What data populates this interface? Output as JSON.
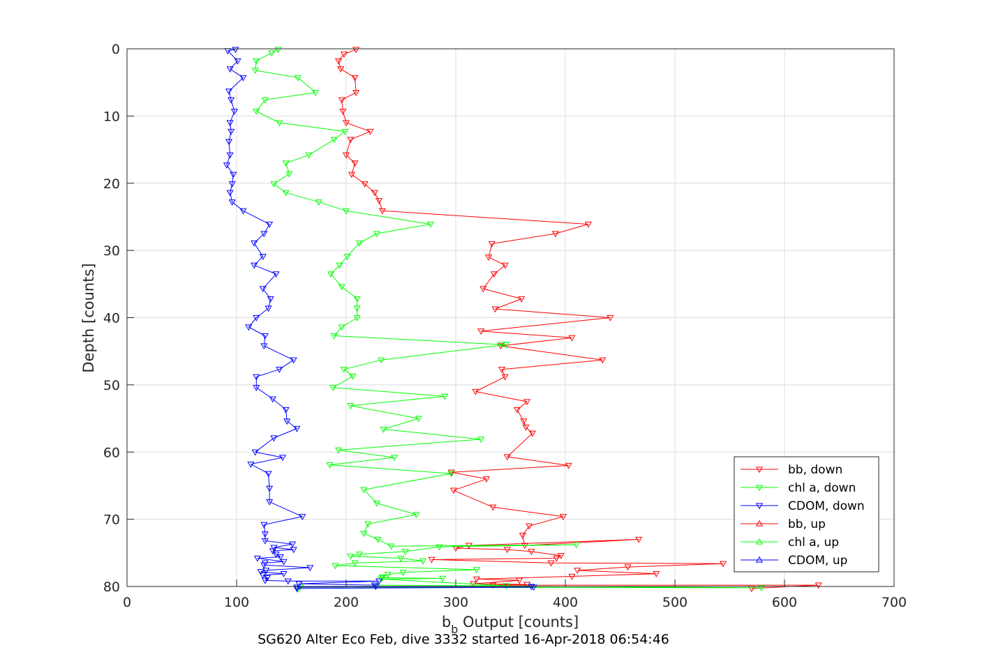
{
  "chart_data": {
    "type": "line",
    "subtitle": "SG620 Alter Eco Feb, dive 3332 started 16-Apr-2018 06:54:46",
    "xlabel_main": "b",
    "xlabel_sub": "b",
    "xlabel_rest": " Output [counts]",
    "ylabel": "Depth [counts]",
    "xlim": [
      0,
      700
    ],
    "ylim": [
      0,
      80
    ],
    "y_reversed": true,
    "grid": true,
    "legend_position": "bottom-right",
    "xticks": [
      0,
      100,
      200,
      300,
      400,
      500,
      600,
      700
    ],
    "yticks": [
      0,
      10,
      20,
      30,
      40,
      50,
      60,
      70,
      80
    ],
    "series": [
      {
        "name": "bb, down",
        "color": "#ff0000",
        "marker": "triangle-down",
        "x": [
          209,
          198,
          193,
          195,
          208,
          209,
          196,
          197,
          200,
          222,
          204,
          200,
          208,
          205,
          217,
          226,
          230,
          233,
          421,
          391,
          333,
          330,
          345,
          335,
          325,
          360,
          336,
          441,
          323,
          406,
          341,
          434,
          342,
          345,
          318,
          365,
          356,
          362,
          364,
          370,
          347,
          403,
          296,
          328,
          298,
          334,
          398,
          367,
          361,
          363,
          467,
          312,
          300,
          347,
          369,
          396,
          392,
          278,
          387,
          544,
          457,
          411,
          483,
          406,
          319,
          358,
          316,
          365,
          334,
          631,
          570
        ],
        "y": [
          0.1,
          0.8,
          1.8,
          3.0,
          4.3,
          6.5,
          7.6,
          9.3,
          11.0,
          12.3,
          13.5,
          15.8,
          17.0,
          18.7,
          20.1,
          21.4,
          22.6,
          24.1,
          26.1,
          27.5,
          29.0,
          31.0,
          32.2,
          33.5,
          35.7,
          37.2,
          38.7,
          40.0,
          42.0,
          43.0,
          44.2,
          46.3,
          47.7,
          48.8,
          51.0,
          52.5,
          53.7,
          55.4,
          56.3,
          57.2,
          60.7,
          62.0,
          63.0,
          64.0,
          65.7,
          68.2,
          69.6,
          71.0,
          72.4,
          73.9,
          73.0,
          73.9,
          74.3,
          74.5,
          74.8,
          75.4,
          75.8,
          76.0,
          76.5,
          76.6,
          77.1,
          77.6,
          78.1,
          78.5,
          78.9,
          79.1,
          79.6,
          79.7,
          79.8,
          79.8,
          80.3
        ]
      },
      {
        "name": "chl a, down",
        "color": "#00ff00",
        "marker": "triangle-down",
        "x": [
          138,
          132,
          118,
          117,
          156,
          172,
          126,
          118,
          139,
          199,
          189,
          166,
          145,
          148,
          134,
          145,
          175,
          200,
          277,
          228,
          212,
          201,
          194,
          186,
          196,
          210,
          210,
          210,
          196,
          189,
          342,
          346,
          232,
          198,
          206,
          188,
          290,
          204,
          266,
          234,
          323,
          193,
          244,
          185,
          296,
          216,
          228,
          264,
          220,
          216,
          229,
          241,
          410,
          285,
          254,
          212,
          204,
          250,
          270,
          208,
          190,
          319,
          252,
          238,
          233,
          233,
          288,
          232,
          346,
          226,
          579,
          158,
          156
        ],
        "y": [
          0.1,
          0.6,
          1.8,
          3.2,
          4.3,
          6.5,
          7.6,
          9.3,
          11.0,
          12.3,
          13.5,
          15.8,
          17.0,
          18.6,
          20.1,
          21.4,
          22.8,
          24.1,
          26.1,
          27.5,
          28.9,
          30.9,
          32.2,
          33.5,
          35.4,
          37.2,
          38.6,
          40.0,
          41.4,
          42.7,
          44.0,
          44.0,
          46.3,
          47.7,
          48.7,
          50.4,
          51.7,
          53.1,
          55.0,
          56.6,
          58.1,
          59.7,
          60.8,
          61.9,
          63.2,
          65.6,
          67.6,
          69.3,
          70.7,
          72.1,
          73.0,
          74.0,
          73.8,
          74.1,
          74.8,
          75.2,
          75.5,
          75.8,
          76.2,
          76.5,
          76.9,
          77.5,
          77.9,
          78.2,
          78.6,
          78.7,
          78.8,
          78.9,
          79.9,
          79.8,
          80.2,
          80.1,
          80.4
        ]
      },
      {
        "name": "CDOM, down",
        "color": "#0000ff",
        "marker": "triangle-down",
        "x": [
          99,
          92,
          101,
          94,
          106,
          93,
          95,
          98,
          94,
          95,
          93,
          94,
          91,
          97,
          96,
          94,
          96,
          106,
          130,
          125,
          116,
          124,
          116,
          136,
          124,
          131,
          129,
          118,
          111,
          126,
          125,
          152,
          139,
          118,
          118,
          133,
          145,
          146,
          155,
          134,
          117,
          142,
          113,
          129,
          130,
          130,
          160,
          125,
          126,
          126,
          151,
          134,
          152,
          133,
          136,
          140,
          119,
          143,
          126,
          125,
          167,
          127,
          122,
          143,
          124,
          128,
          126,
          147,
          230,
          157,
          226,
          227,
          155,
          369,
          371,
          155
        ],
        "y": [
          0.1,
          0.3,
          1.8,
          3.0,
          4.3,
          6.3,
          7.6,
          9.3,
          11.0,
          12.3,
          13.8,
          15.8,
          17.3,
          18.7,
          20.1,
          21.4,
          22.8,
          24.1,
          26.1,
          27.5,
          28.9,
          30.9,
          32.2,
          33.5,
          35.7,
          37.2,
          38.6,
          40.0,
          41.4,
          42.7,
          44.2,
          46.3,
          47.7,
          48.8,
          50.4,
          52.1,
          53.7,
          55.4,
          56.5,
          57.9,
          60.0,
          60.8,
          61.8,
          63.2,
          65.4,
          67.4,
          69.6,
          70.8,
          72.2,
          73.2,
          73.7,
          74.2,
          74.5,
          74.7,
          75.2,
          75.6,
          75.8,
          76.3,
          76.5,
          76.8,
          77.2,
          77.6,
          77.8,
          78.1,
          78.3,
          78.7,
          79.1,
          79.2,
          79.2,
          79.6,
          79.8,
          80.0,
          80.1,
          80.0,
          80.1,
          80.3
        ]
      },
      {
        "name": "bb, up",
        "color": "#ff0000",
        "marker": "triangle-up",
        "x": [],
        "y": []
      },
      {
        "name": "chl a, up",
        "color": "#00ff00",
        "marker": "triangle-up",
        "x": [],
        "y": []
      },
      {
        "name": "CDOM, up",
        "color": "#0000ff",
        "marker": "triangle-up",
        "x": [],
        "y": []
      }
    ]
  }
}
